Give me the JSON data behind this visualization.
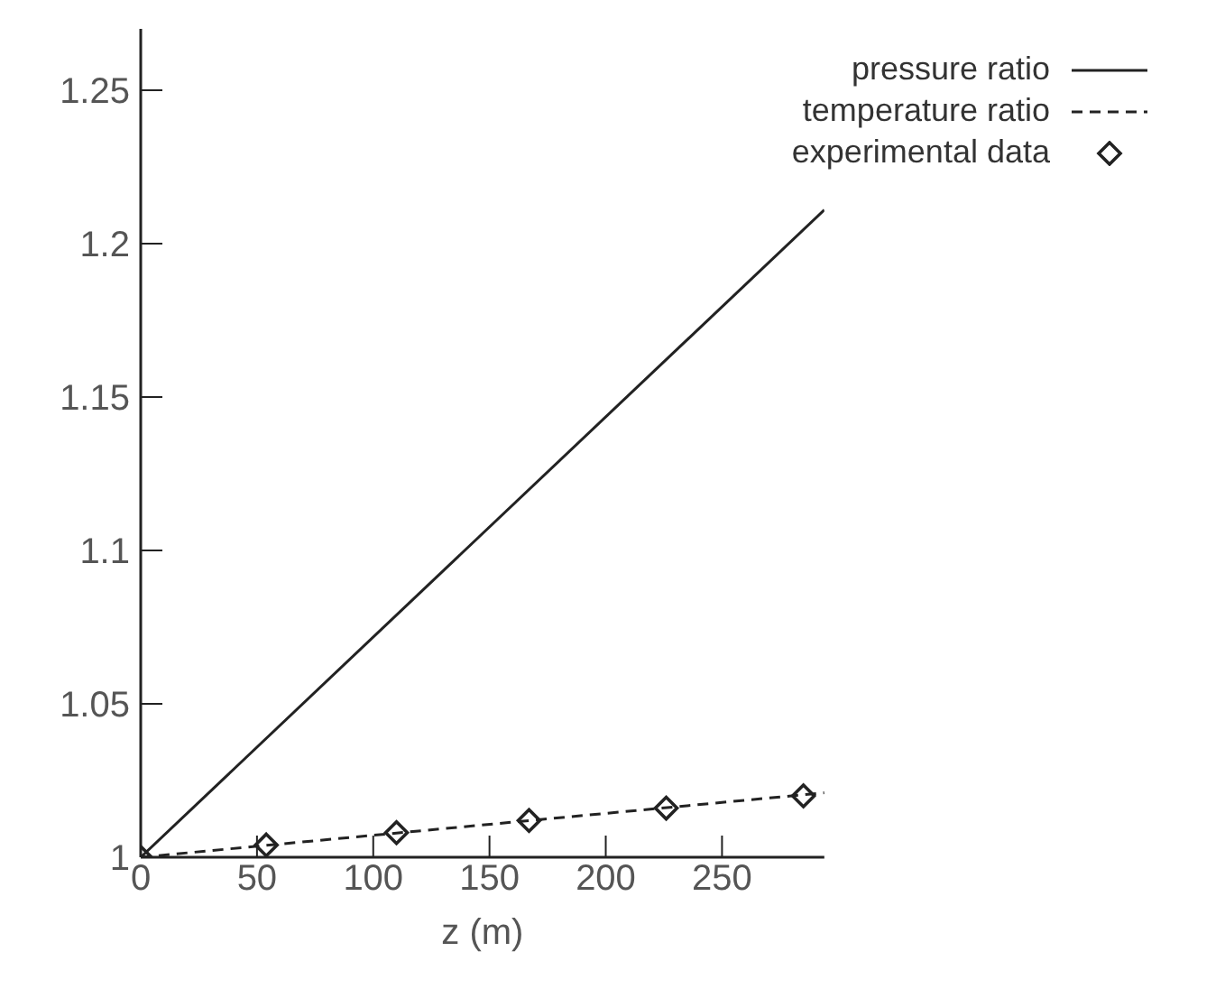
{
  "chart_data": {
    "type": "line",
    "xlabel": "z (m)",
    "xlim": [
      0,
      294
    ],
    "xticks": [
      0,
      50,
      100,
      150,
      200,
      250
    ],
    "ylim": [
      1,
      1.27
    ],
    "yticks": [
      1,
      1.05,
      1.1,
      1.15,
      1.2,
      1.25
    ],
    "grid": false,
    "legend": "top right",
    "series": [
      {
        "name": "pressure ratio",
        "color": "#222222",
        "line_style": "solid",
        "marker": "none",
        "x": [
          0,
          294
        ],
        "values": [
          1,
          1.211
        ]
      },
      {
        "name": "temperature ratio",
        "color": "#222222",
        "line_style": "dashed",
        "marker": "none",
        "x": [
          0,
          294
        ],
        "values": [
          1,
          1.021
        ]
      },
      {
        "name": "experimental data",
        "type": "scatter",
        "color": "#222222",
        "marker": "diamond",
        "x": [
          0,
          54,
          110,
          167,
          226,
          285
        ],
        "values": [
          1,
          1.004,
          1.008,
          1.012,
          1.016,
          1.02
        ]
      }
    ]
  }
}
